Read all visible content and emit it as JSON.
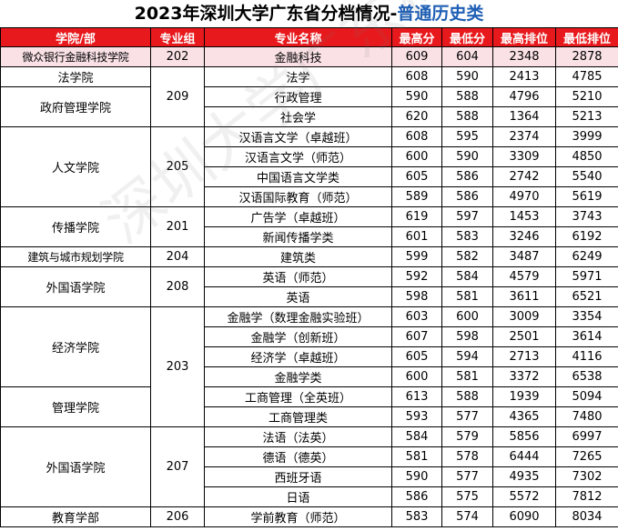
{
  "title": {
    "main": "2023年深圳大学广东省分档情况-",
    "highlight": "普通历史类"
  },
  "headers": [
    "学院/部",
    "专业组",
    "专业名称",
    "最高分",
    "最低分",
    "最高排位",
    "最低排位"
  ],
  "rows": [
    {
      "college": "微众银行金融科技学院",
      "group": "202",
      "major": "金融科技",
      "max": "609",
      "min": "604",
      "max_rank": "2348",
      "min_rank": "2878"
    },
    {
      "college": "法学院",
      "group": "209",
      "major": "法学",
      "max": "608",
      "min": "590",
      "max_rank": "2413",
      "min_rank": "4785"
    },
    {
      "college": "政府管理学院",
      "group": "",
      "major": "行政管理",
      "max": "590",
      "min": "588",
      "max_rank": "4796",
      "min_rank": "5210"
    },
    {
      "college": "",
      "group": "",
      "major": "社会学",
      "max": "620",
      "min": "588",
      "max_rank": "1364",
      "min_rank": "5213"
    },
    {
      "college": "人文学院",
      "group": "205",
      "major": "汉语言文学（卓越班）",
      "max": "608",
      "min": "595",
      "max_rank": "2374",
      "min_rank": "3999"
    },
    {
      "college": "",
      "group": "",
      "major": "汉语言文学（师范）",
      "max": "600",
      "min": "590",
      "max_rank": "3309",
      "min_rank": "4850"
    },
    {
      "college": "",
      "group": "",
      "major": "中国语言文学类",
      "max": "605",
      "min": "586",
      "max_rank": "2742",
      "min_rank": "5540"
    },
    {
      "college": "",
      "group": "",
      "major": "汉语国际教育（师范）",
      "max": "589",
      "min": "586",
      "max_rank": "4970",
      "min_rank": "5619"
    },
    {
      "college": "传播学院",
      "group": "201",
      "major": "广告学（卓越班）",
      "max": "619",
      "min": "597",
      "max_rank": "1453",
      "min_rank": "3743"
    },
    {
      "college": "",
      "group": "",
      "major": "新闻传播学类",
      "max": "601",
      "min": "583",
      "max_rank": "3246",
      "min_rank": "6192"
    },
    {
      "college": "建筑与城市规划学院",
      "group": "204",
      "major": "建筑类",
      "max": "599",
      "min": "582",
      "max_rank": "3487",
      "min_rank": "6249"
    },
    {
      "college": "外国语学院",
      "group": "208",
      "major": "英语（师范）",
      "max": "592",
      "min": "584",
      "max_rank": "4579",
      "min_rank": "5971"
    },
    {
      "college": "",
      "group": "",
      "major": "英语",
      "max": "598",
      "min": "581",
      "max_rank": "3611",
      "min_rank": "6521"
    },
    {
      "college": "经济学院",
      "group": "203",
      "major": "金融学（数理金融实验班）",
      "max": "603",
      "min": "600",
      "max_rank": "3009",
      "min_rank": "3354"
    },
    {
      "college": "",
      "group": "",
      "major": "金融学（创新班）",
      "max": "607",
      "min": "598",
      "max_rank": "2501",
      "min_rank": "3614"
    },
    {
      "college": "",
      "group": "",
      "major": "经济学（卓越班）",
      "max": "605",
      "min": "594",
      "max_rank": "2713",
      "min_rank": "4116"
    },
    {
      "college": "",
      "group": "",
      "major": "金融学类",
      "max": "600",
      "min": "581",
      "max_rank": "3372",
      "min_rank": "6538"
    },
    {
      "college": "管理学院",
      "group": "",
      "major": "工商管理（全英班）",
      "max": "613",
      "min": "588",
      "max_rank": "1939",
      "min_rank": "5094"
    },
    {
      "college": "",
      "group": "",
      "major": "工商管理类",
      "max": "593",
      "min": "577",
      "max_rank": "4365",
      "min_rank": "7480"
    },
    {
      "college": "外国语学院",
      "group": "207",
      "major": "法语（法英）",
      "max": "584",
      "min": "579",
      "max_rank": "5856",
      "min_rank": "6997"
    },
    {
      "college": "",
      "group": "",
      "major": "德语（德英）",
      "max": "581",
      "min": "578",
      "max_rank": "6444",
      "min_rank": "7265"
    },
    {
      "college": "",
      "group": "",
      "major": "西班牙语",
      "max": "590",
      "min": "577",
      "max_rank": "4935",
      "min_rank": "7302"
    },
    {
      "college": "",
      "group": "",
      "major": "日语",
      "max": "586",
      "min": "575",
      "max_rank": "5572",
      "min_rank": "7812"
    },
    {
      "college": "教育学部",
      "group": "206",
      "major": "学前教育（师范）",
      "max": "583",
      "min": "574",
      "max_rank": "6090",
      "min_rank": "8034"
    }
  ],
  "watermark": "深圳大学广东科教"
}
